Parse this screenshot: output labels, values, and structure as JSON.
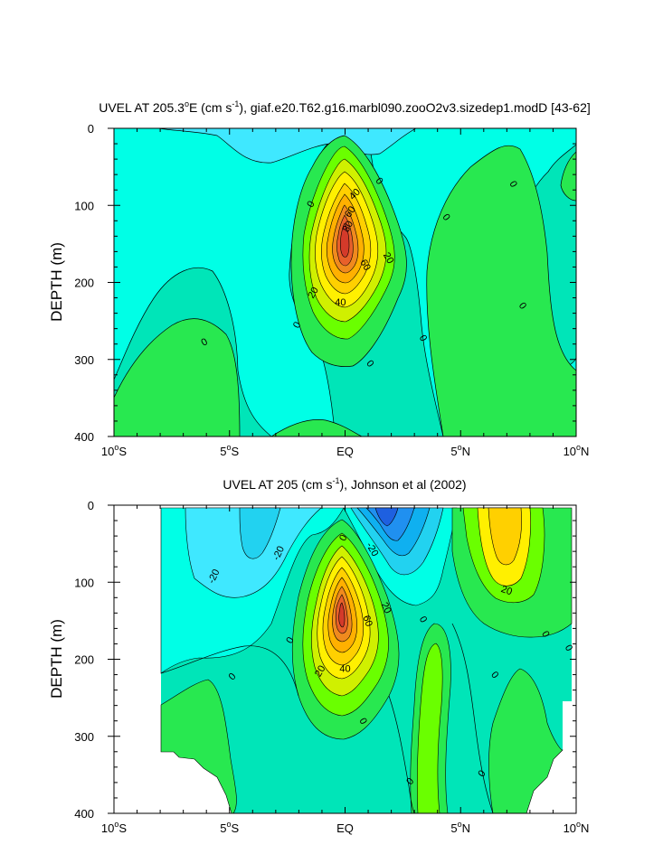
{
  "chart_data": [
    {
      "type": "contour",
      "title": "UVEL AT 205.3°E (cm s-1), giaf.e20.T62.g16.marbl090.zooO2v3.sizedep1.modD [43-62]",
      "title_parts": {
        "a": "UVEL AT 205.3",
        "b": "o",
        "c": "E (cm s",
        "d": "-1",
        "e": "), giaf.e20.T62.g16.marbl090.zooO2v3.sizedep1.modD [43-62]"
      },
      "xlabel": "",
      "ylabel": "DEPTH (m)",
      "xlim": [
        -10,
        10
      ],
      "ylim": [
        400,
        0
      ],
      "x_ticks": [
        {
          "value": -10,
          "num": "10",
          "hem": "S"
        },
        {
          "value": -5,
          "num": "5",
          "hem": "S"
        },
        {
          "value": 0,
          "num": "EQ",
          "hem": ""
        },
        {
          "value": 5,
          "num": "5",
          "hem": "N"
        },
        {
          "value": 10,
          "num": "10",
          "hem": "N"
        }
      ],
      "y_ticks": [
        0,
        100,
        200,
        300,
        400
      ],
      "contour_interval": 10,
      "field": [
        {
          "x": 0,
          "depth": 140,
          "value": 95,
          "kind": "max"
        },
        {
          "x": -9,
          "depth": 50,
          "value": -5,
          "kind": "min"
        },
        {
          "x": 4,
          "depth": 300,
          "value": -5,
          "kind": "min"
        },
        {
          "x": -6,
          "depth": 350,
          "value": 5,
          "kind": "max"
        },
        {
          "x": 8,
          "depth": 150,
          "value": 5,
          "kind": "max"
        }
      ],
      "contour_labels": [
        {
          "text": "0",
          "x": -1.5,
          "depth": 98,
          "rot": 60
        },
        {
          "text": "40",
          "x": 0.4,
          "depth": 85,
          "rot": 45
        },
        {
          "text": "60",
          "x": 0.2,
          "depth": 108,
          "rot": 55
        },
        {
          "text": "80",
          "x": 0.1,
          "depth": 127,
          "rot": 60
        },
        {
          "text": "60",
          "x": 0.9,
          "depth": 177,
          "rot": -60
        },
        {
          "text": "20",
          "x": 1.9,
          "depth": 168,
          "rot": -60
        },
        {
          "text": "20",
          "x": -1.4,
          "depth": 213,
          "rot": 60
        },
        {
          "text": "40",
          "x": -0.2,
          "depth": 225,
          "rot": 0
        },
        {
          "text": "0",
          "x": 1.5,
          "depth": 68,
          "rot": -50
        },
        {
          "text": "0",
          "x": 4.4,
          "depth": 115,
          "rot": -55
        },
        {
          "text": "0",
          "x": 7.3,
          "depth": 72,
          "rot": -60
        },
        {
          "text": "0",
          "x": 7.7,
          "depth": 230,
          "rot": -55
        },
        {
          "text": "0",
          "x": -2.1,
          "depth": 255,
          "rot": 60
        },
        {
          "text": "0",
          "x": 1.1,
          "depth": 305,
          "rot": -50
        },
        {
          "text": "0",
          "x": 3.4,
          "depth": 272,
          "rot": -60
        },
        {
          "text": "0",
          "x": -6.1,
          "depth": 277,
          "rot": 30
        }
      ]
    },
    {
      "type": "contour",
      "title": "UVEL AT 205 (cm s-1), Johnson et al (2002)",
      "title_parts": {
        "a": "UVEL AT 205 (cm s",
        "b": "-1",
        "c": "), Johnson et al (2002)"
      },
      "xlabel": "",
      "ylabel": "DEPTH (m)",
      "xlim": [
        -10,
        10
      ],
      "ylim": [
        400,
        0
      ],
      "x_ticks": [
        {
          "value": -10,
          "num": "10",
          "hem": "S"
        },
        {
          "value": -5,
          "num": "5",
          "hem": "S"
        },
        {
          "value": 0,
          "num": "EQ",
          "hem": ""
        },
        {
          "value": 5,
          "num": "5",
          "hem": "N"
        },
        {
          "value": 10,
          "num": "10",
          "hem": "N"
        }
      ],
      "y_ticks": [
        0,
        100,
        200,
        300,
        400
      ],
      "contour_interval": 10,
      "data_extent": {
        "x": [
          -8,
          10
        ],
        "depth": [
          5,
          400
        ]
      },
      "field": [
        {
          "x": 0,
          "depth": 135,
          "value": 95,
          "kind": "max"
        },
        {
          "x": 1.8,
          "depth": 10,
          "value": -50,
          "kind": "min"
        },
        {
          "x": 7,
          "depth": 40,
          "value": 35,
          "kind": "max"
        },
        {
          "x": -4,
          "depth": 60,
          "value": -20,
          "kind": "min"
        }
      ],
      "contour_labels": [
        {
          "text": "-20",
          "x": -5.7,
          "depth": 92,
          "rot": 65
        },
        {
          "text": "-20",
          "x": -2.9,
          "depth": 62,
          "rot": 65
        },
        {
          "text": "0",
          "x": -0.1,
          "depth": 42,
          "rot": 60
        },
        {
          "text": "-20",
          "x": 1.2,
          "depth": 57,
          "rot": -60
        },
        {
          "text": "20",
          "x": 1.8,
          "depth": 133,
          "rot": -65
        },
        {
          "text": "60",
          "x": 1.0,
          "depth": 150,
          "rot": -70
        },
        {
          "text": "20",
          "x": -1.1,
          "depth": 215,
          "rot": 60
        },
        {
          "text": "40",
          "x": 0.0,
          "depth": 212,
          "rot": 0
        },
        {
          "text": "20",
          "x": 7.0,
          "depth": 110,
          "rot": -20
        },
        {
          "text": "0",
          "x": 3.4,
          "depth": 148,
          "rot": -60
        },
        {
          "text": "0",
          "x": -2.4,
          "depth": 175,
          "rot": 60
        },
        {
          "text": "0",
          "x": -4.9,
          "depth": 222,
          "rot": 45
        },
        {
          "text": "0",
          "x": 0.8,
          "depth": 280,
          "rot": -60
        },
        {
          "text": "0",
          "x": 6.5,
          "depth": 220,
          "rot": -50
        },
        {
          "text": "0",
          "x": 8.7,
          "depth": 167,
          "rot": -60
        },
        {
          "text": "0",
          "x": 9.7,
          "depth": 185,
          "rot": -60
        },
        {
          "text": "0",
          "x": 2.8,
          "depth": 358,
          "rot": 50
        },
        {
          "text": "0",
          "x": 5.9,
          "depth": 348,
          "rot": 55
        }
      ]
    }
  ]
}
